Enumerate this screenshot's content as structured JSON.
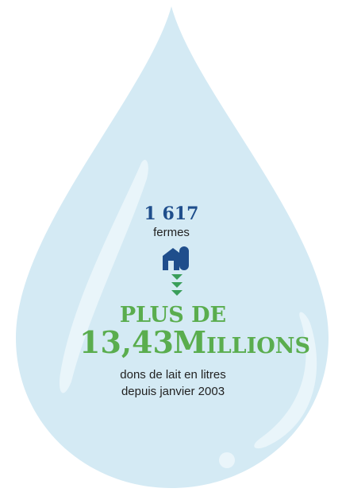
{
  "stat": {
    "farms_count": "1 617",
    "farms_label": "fermes",
    "prefix": "PLUS DE",
    "amount": "13,43",
    "unit": "Millions",
    "desc_line1": "dons de lait en litres",
    "desc_line2": "depuis janvier 2003"
  }
}
